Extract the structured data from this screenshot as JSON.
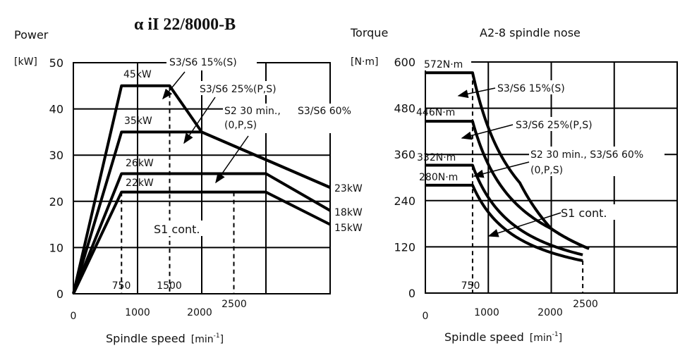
{
  "chart_data": [
    {
      "type": "line",
      "title": "α iI 22/8000-B",
      "ylabel": "Power",
      "yunit": "[kW]",
      "xlabel": "Spindle speed",
      "xunit": "[min",
      "xunit_sup": "-1",
      "xunit_close": "]",
      "xlim": [
        0,
        4000
      ],
      "ylim": [
        0,
        50
      ],
      "grid": true,
      "yticks": [
        "0",
        "10",
        "20",
        "30",
        "40",
        "50"
      ],
      "xticks": [
        "0",
        "1000",
        "2000",
        "2500"
      ],
      "inner_xticks": [
        "750",
        "1500"
      ],
      "series": [
        {
          "name": "S3/S6 15%(S)",
          "x": [
            0,
            750,
            1500,
            2000,
            3000,
            4000
          ],
          "y": [
            0,
            45,
            45,
            35,
            29,
            23
          ]
        },
        {
          "name": "S3/S6 25%(P,S)",
          "x": [
            0,
            750,
            2000,
            3000,
            4000
          ],
          "y": [
            0,
            35,
            35,
            29,
            23
          ]
        },
        {
          "name": "S2 30 min., S3/S6 60% (0,P,S)",
          "x": [
            0,
            750,
            3000,
            4000
          ],
          "y": [
            0,
            26,
            26,
            18
          ]
        },
        {
          "name": "S1 cont.",
          "x": [
            0,
            750,
            3000,
            4000
          ],
          "y": [
            0,
            22,
            22,
            15
          ]
        }
      ],
      "point_labels": [
        "45kW",
        "35kW",
        "26kW",
        "22kW",
        "23kW",
        "18kW",
        "15kW"
      ],
      "annotations": {
        "s3_15": "S3/S6 15%(S)",
        "s3_25": "S3/S6 25%(P,S)",
        "s2_line1": "S2 30 min.,",
        "s2_line2": "(0,P,S)",
        "s3_60": "S3/S6 60%",
        "s1": "S1 cont."
      }
    },
    {
      "type": "line",
      "title": "A2-8 spindle nose",
      "ylabel": "Torque",
      "yunit": "[N·m]",
      "xlabel": "Spindle speed",
      "xunit": "[min",
      "xunit_sup": "-1",
      "xunit_close": "]",
      "xlim": [
        0,
        4000
      ],
      "ylim": [
        0,
        600
      ],
      "grid": true,
      "yticks": [
        "0",
        "120",
        "240",
        "360",
        "480",
        "600"
      ],
      "xticks": [
        "0",
        "1000",
        "2000",
        "2500"
      ],
      "inner_xticks": [
        "750"
      ],
      "series": [
        {
          "name": "S3/S6 15%(S)",
          "torque_const": 572,
          "base_speed": 750,
          "end_speed": 2600
        },
        {
          "name": "S3/S6 25%(P,S)",
          "torque_const": 446,
          "base_speed": 750,
          "end_speed": 2600
        },
        {
          "name": "S2 30 min., S3/S6 60% (0,P,S)",
          "torque_const": 332,
          "base_speed": 750,
          "end_speed": 2500
        },
        {
          "name": "S1 cont.",
          "torque_const": 280,
          "base_speed": 750,
          "end_speed": 2500
        }
      ],
      "point_labels": [
        "572N·m",
        "446N·m",
        "332N·m",
        "280N·m"
      ],
      "annotations": {
        "s3_15": "S3/S6 15%(S)",
        "s3_25": "S3/S6 25%(P,S)",
        "s2_line1": "S2 30 min., S3/S6 60%",
        "s2_line2": "(0,P,S)",
        "s1": "S1 cont."
      }
    }
  ]
}
